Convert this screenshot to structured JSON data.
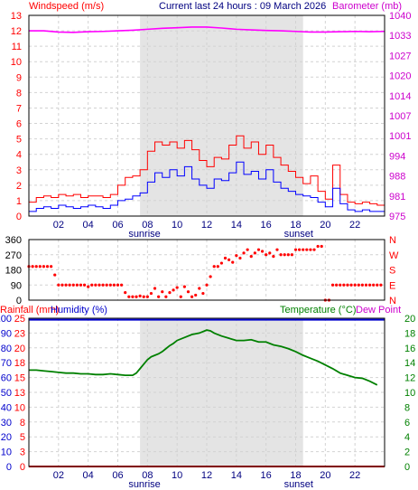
{
  "header": {
    "left_title": "Windspeed (m/s)",
    "center_title": "Current last 24 hours : 09 March 2026",
    "right_title": "Barometer (mb)"
  },
  "x_axis": {
    "hour_ticks": [
      "02",
      "04",
      "06",
      "08",
      "10",
      "12",
      "14",
      "16",
      "18",
      "20",
      "22"
    ],
    "sunrise_label": "sunrise",
    "sunset_label": "sunset"
  },
  "colors": {
    "wind_gust": "#ff0000",
    "wind_avg": "#0000ff",
    "barometer": "#ff00ff",
    "direction": "#ff0000",
    "temperature": "#008000",
    "humidity": "#0000cc",
    "rainfall": "#ff0000",
    "daylight_band": "#e4e4e4",
    "grid": "#d2d2d2"
  },
  "panel3_header": {
    "rainfall": "Rainfall (mm)",
    "humidity": "Humidity (%)",
    "temperature": "Temperature (°C)",
    "dew_point": "Dew Point"
  },
  "chart_data": [
    {
      "type": "line",
      "title": "Windspeed (m/s) / Barometer (mb)",
      "x_unit": "hour",
      "x_range": [
        0,
        24
      ],
      "sunrise_hour": 7.5,
      "sunset_hour": 18.5,
      "left_axis": {
        "label": "Windspeed (m/s)",
        "ylim": [
          0,
          13
        ],
        "ticks": [
          "0",
          "1",
          "2",
          "3",
          "4",
          "5",
          "6",
          "7",
          "8",
          "9",
          "10",
          "11",
          "12",
          "13"
        ]
      },
      "right_axis": {
        "label": "Barometer (mb)",
        "ylim": [
          975,
          1040
        ],
        "ticks": [
          "975",
          "981",
          "988",
          "994",
          "1001",
          "1007",
          "1014",
          "1020",
          "1027",
          "1033",
          "1040"
        ]
      },
      "series": [
        {
          "name": "Wind gust",
          "axis": "left",
          "x": [
            0,
            0.5,
            1,
            1.5,
            2,
            2.5,
            3,
            3.5,
            4,
            4.5,
            5,
            5.5,
            6,
            6.5,
            7,
            7.5,
            8,
            8.5,
            9,
            9.5,
            10,
            10.5,
            11,
            11.5,
            12,
            12.5,
            13,
            13.5,
            14,
            14.5,
            15,
            15.5,
            16,
            16.5,
            17,
            17.5,
            18,
            18.5,
            19,
            19.5,
            20,
            20.5,
            21,
            21.5,
            22,
            22.5,
            23,
            23.5
          ],
          "values": [
            0.9,
            1.2,
            1.3,
            1.2,
            1.4,
            1.3,
            1.4,
            1.2,
            1.3,
            1.3,
            1.2,
            1.4,
            2.0,
            2.5,
            2.6,
            3.0,
            4.2,
            4.8,
            4.6,
            4.8,
            4.4,
            4.9,
            4.3,
            3.6,
            3.2,
            3.8,
            3.7,
            4.6,
            5.2,
            4.4,
            4.8,
            4.0,
            4.6,
            3.8,
            3.3,
            2.9,
            2.5,
            2.1,
            2.6,
            1.6,
            1.1,
            3.3,
            1.4,
            0.9,
            0.8,
            0.9,
            0.8,
            0.7
          ]
        },
        {
          "name": "Wind average",
          "axis": "left",
          "x": [
            0,
            0.5,
            1,
            1.5,
            2,
            2.5,
            3,
            3.5,
            4,
            4.5,
            5,
            5.5,
            6,
            6.5,
            7,
            7.5,
            8,
            8.5,
            9,
            9.5,
            10,
            10.5,
            11,
            11.5,
            12,
            12.5,
            13,
            13.5,
            14,
            14.5,
            15,
            15.5,
            16,
            16.5,
            17,
            17.5,
            18,
            18.5,
            19,
            19.5,
            20,
            20.5,
            21,
            21.5,
            22,
            22.5,
            23,
            23.5
          ],
          "values": [
            0.3,
            0.5,
            0.6,
            0.5,
            0.7,
            0.6,
            0.5,
            0.6,
            0.7,
            0.6,
            0.5,
            0.7,
            1.0,
            1.1,
            1.3,
            1.5,
            2.2,
            2.8,
            2.5,
            3.0,
            2.6,
            3.2,
            2.4,
            2.0,
            1.8,
            2.4,
            2.3,
            2.8,
            3.5,
            2.7,
            2.9,
            2.4,
            3.0,
            2.2,
            1.8,
            1.6,
            1.4,
            1.3,
            1.2,
            0.9,
            0.6,
            1.8,
            0.8,
            0.4,
            0.3,
            0.4,
            0.3,
            0.3
          ]
        },
        {
          "name": "Barometer",
          "axis": "right",
          "x": [
            0,
            1,
            2,
            3,
            4,
            5,
            6,
            7,
            8,
            9,
            10,
            11,
            12,
            13,
            14,
            15,
            16,
            17,
            18,
            19,
            20,
            21,
            22,
            23,
            24
          ],
          "values": [
            1035,
            1035,
            1034.6,
            1034.5,
            1034.7,
            1034.8,
            1035,
            1035.2,
            1035.5,
            1035.8,
            1036,
            1036.2,
            1036.2,
            1035.9,
            1035.5,
            1035.3,
            1035.1,
            1035,
            1034.8,
            1034.6,
            1034.6,
            1034.7,
            1034.8,
            1034.7,
            1034.8
          ]
        }
      ]
    },
    {
      "type": "scatter",
      "title": "Wind direction",
      "x_unit": "hour",
      "x_range": [
        0,
        24
      ],
      "left_axis": {
        "ylim": [
          0,
          360
        ],
        "ticks": [
          "0",
          "90",
          "180",
          "270",
          "360"
        ]
      },
      "right_axis": {
        "ticks": [
          "N",
          "E",
          "S",
          "W",
          "N"
        ]
      },
      "series": [
        {
          "name": "Direction",
          "x": [
            0,
            0.25,
            0.5,
            0.75,
            1,
            1.25,
            1.5,
            1.75,
            2,
            2.25,
            2.5,
            2.75,
            3,
            3.25,
            3.5,
            3.75,
            4,
            4.25,
            4.5,
            4.75,
            5,
            5.25,
            5.5,
            5.75,
            6,
            6.25,
            6.5,
            6.75,
            7,
            7.25,
            7.5,
            7.75,
            8,
            8.25,
            8.5,
            8.75,
            9,
            9.25,
            9.5,
            9.75,
            10,
            10.25,
            10.5,
            10.75,
            11,
            11.25,
            11.5,
            11.75,
            12,
            12.25,
            12.5,
            12.75,
            13,
            13.25,
            13.5,
            13.75,
            14,
            14.25,
            14.5,
            14.75,
            15,
            15.25,
            15.5,
            15.75,
            16,
            16.25,
            16.5,
            16.75,
            17,
            17.25,
            17.5,
            17.75,
            18,
            18.25,
            18.5,
            18.75,
            19,
            19.25,
            19.5,
            19.75,
            20,
            20.25,
            20.5,
            20.75,
            21,
            21.25,
            21.5,
            21.75,
            22,
            22.25,
            22.5,
            22.75,
            23,
            23.25,
            23.5,
            23.75
          ],
          "values": [
            200,
            200,
            200,
            200,
            200,
            200,
            200,
            150,
            90,
            90,
            90,
            90,
            90,
            90,
            90,
            90,
            80,
            90,
            90,
            90,
            90,
            90,
            90,
            90,
            90,
            90,
            45,
            20,
            20,
            20,
            25,
            20,
            20,
            40,
            70,
            20,
            50,
            20,
            45,
            60,
            75,
            20,
            80,
            50,
            20,
            30,
            70,
            40,
            90,
            140,
            200,
            200,
            220,
            250,
            240,
            225,
            265,
            250,
            280,
            300,
            260,
            280,
            300,
            290,
            270,
            280,
            260,
            300,
            270,
            270,
            270,
            270,
            300,
            300,
            300,
            300,
            300,
            300,
            320,
            320,
            0,
            0,
            90,
            90,
            90,
            90,
            90,
            90,
            90,
            90,
            90,
            90,
            90,
            90,
            90,
            90
          ]
        }
      ]
    },
    {
      "type": "line",
      "title": "Rainfall (mm) / Humidity (%) / Temperature (°C)",
      "x_unit": "hour",
      "x_range": [
        0,
        24
      ],
      "sunrise_hour": 7.5,
      "sunset_hour": 18.5,
      "outer_left_axis": {
        "label": "Rainfall (mm)",
        "ylim": [
          0,
          100
        ],
        "ticks": [
          "0",
          "10",
          "20",
          "30",
          "40",
          "50",
          "60",
          "70",
          "80",
          "90",
          "100"
        ]
      },
      "inner_left_axis": {
        "label": "Humidity (%)",
        "ylim": [
          0,
          25
        ],
        "ticks": [
          "0",
          "3",
          "5",
          "8",
          "10",
          "13",
          "15",
          "18",
          "20",
          "23",
          "25"
        ]
      },
      "right_axis": {
        "label": "Temperature (°C)",
        "ylim": [
          0,
          20
        ],
        "ticks": [
          "0",
          "2",
          "4",
          "6",
          "8",
          "10",
          "12",
          "14",
          "16",
          "18",
          "20"
        ]
      },
      "series": [
        {
          "name": "Humidity",
          "axis": "outer_left",
          "x": [
            0,
            24
          ],
          "values": [
            99,
            99
          ]
        },
        {
          "name": "Rainfall",
          "axis": "inner_left",
          "x": [
            0,
            24
          ],
          "values": [
            0,
            0
          ]
        },
        {
          "name": "Temperature",
          "axis": "right",
          "x": [
            0,
            0.5,
            1,
            1.5,
            2,
            2.5,
            3,
            3.5,
            4,
            4.5,
            5,
            5.5,
            6,
            6.5,
            7,
            7.25,
            7.5,
            7.75,
            8,
            8.25,
            8.5,
            8.75,
            9,
            9.25,
            9.5,
            9.75,
            10,
            10.5,
            11,
            11.5,
            12,
            12.25,
            12.5,
            13,
            13.5,
            14,
            14.5,
            15,
            15.5,
            16,
            16.5,
            17,
            17.5,
            18,
            18.5,
            19,
            19.5,
            20,
            20.5,
            21,
            21.5,
            22,
            22.5,
            23,
            23.5
          ],
          "values": [
            13.0,
            13.0,
            12.9,
            12.8,
            12.7,
            12.6,
            12.6,
            12.5,
            12.5,
            12.4,
            12.4,
            12.5,
            12.4,
            12.3,
            12.3,
            12.6,
            13.2,
            13.8,
            14.4,
            14.8,
            15.0,
            15.2,
            15.5,
            15.9,
            16.3,
            16.6,
            17.0,
            17.4,
            17.8,
            18.0,
            18.4,
            18.3,
            18.0,
            17.6,
            17.3,
            17.0,
            17.0,
            17.1,
            16.8,
            16.8,
            16.4,
            16.2,
            15.9,
            15.5,
            15.0,
            14.6,
            14.2,
            13.7,
            13.2,
            12.6,
            12.3,
            12.0,
            11.9,
            11.5,
            11.0
          ]
        }
      ]
    }
  ]
}
